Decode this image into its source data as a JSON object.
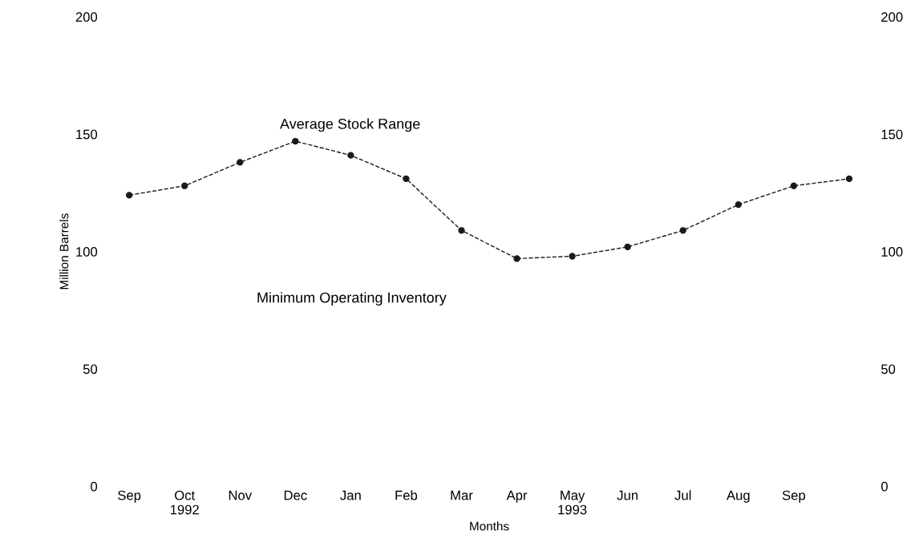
{
  "chart_data": {
    "type": "line",
    "xlabel": "Months",
    "ylabel": "Million Barrels",
    "categories": [
      "Sep",
      "Oct\n1992",
      "Nov",
      "Dec",
      "Jan",
      "Feb",
      "Mar",
      "Apr",
      "May\n1993",
      "Jun",
      "Jul",
      "Aug",
      "Sep",
      null
    ],
    "series": [
      {
        "color": "#1a1a1a",
        "values": [
          124,
          128,
          138,
          147,
          141,
          131,
          109,
          97,
          98,
          102,
          109,
          120,
          128,
          131
        ]
      }
    ],
    "ylim": [
      0,
      200
    ],
    "yticks": [
      0,
      50,
      100,
      150,
      200
    ],
    "y2lim": [
      0,
      200
    ],
    "y2ticks": [
      0,
      50,
      100,
      150,
      200
    ],
    "annotations": [
      "Average Stock Range",
      "Minimum Operating Inventory"
    ],
    "marker": "circle",
    "line_style": "dashed",
    "grid": false,
    "legend": false
  }
}
